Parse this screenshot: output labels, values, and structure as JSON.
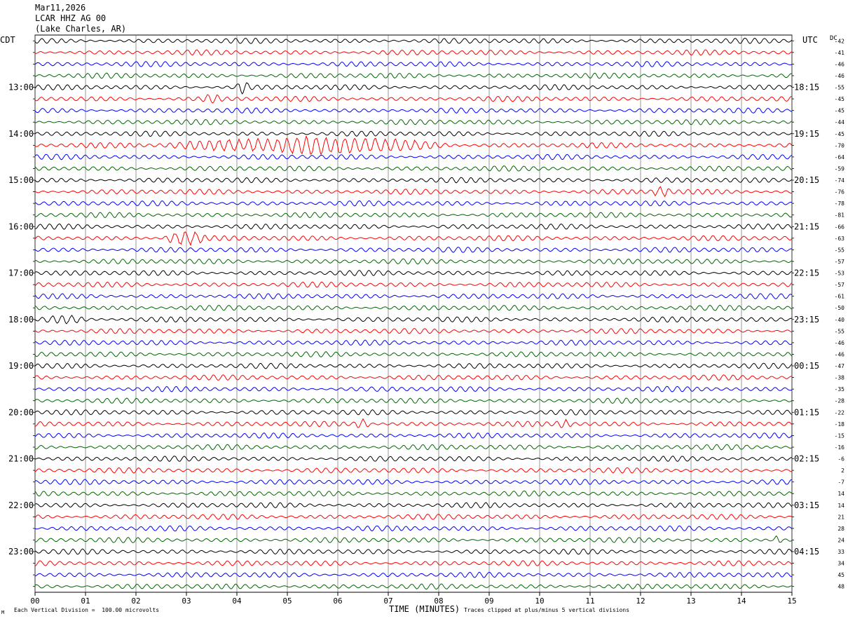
{
  "header": {
    "date": "Mar11,2026",
    "station": "LCAR HHZ AG 00",
    "location": "(Lake Charles, AR)"
  },
  "labels": {
    "left_tz": "CDT",
    "right_tz": "UTC",
    "dc": "DC",
    "mark": "M"
  },
  "footer": {
    "scale": "Each Vertical Division =  100.00 microvolts",
    "clip": "Traces clipped at plus/minus 5 vertical divisions"
  },
  "colors": {
    "trace_cycle": [
      "#000000",
      "#ff0000",
      "#0000ff",
      "#006600"
    ],
    "grid": "#000000"
  },
  "chart_data": {
    "type": "line",
    "title": "",
    "xlabel": "TIME (MINUTES)",
    "ylabel": "",
    "x_ticks": [
      "00",
      "01",
      "02",
      "03",
      "04",
      "05",
      "06",
      "07",
      "08",
      "09",
      "10",
      "11",
      "12",
      "13",
      "14",
      "15"
    ],
    "xlim": [
      0,
      15
    ],
    "rows_per_hour": 4,
    "minutes_per_row": 15,
    "left_hour_labels": [
      "13:00",
      "14:00",
      "15:00",
      "16:00",
      "17:00",
      "18:00",
      "19:00",
      "20:00",
      "21:00",
      "22:00",
      "23:00"
    ],
    "right_hour_labels": [
      "18:15",
      "19:15",
      "20:15",
      "21:15",
      "22:15",
      "23:15",
      "00:15",
      "01:15",
      "02:15",
      "03:15",
      "04:15"
    ],
    "first_hour_row_index": 4,
    "dc_offsets": [
      -42,
      -41,
      -46,
      -46,
      -55,
      -45,
      -45,
      -44,
      -45,
      -70,
      -64,
      -59,
      -74,
      -76,
      -78,
      -81,
      -66,
      -63,
      -55,
      -57,
      -53,
      -57,
      -61,
      -50,
      -40,
      -55,
      -46,
      -46,
      -47,
      -38,
      -35,
      -28,
      -22,
      -18,
      -15,
      -16,
      -6,
      2,
      -7,
      14,
      14,
      21,
      28,
      24,
      33,
      34,
      45,
      48
    ],
    "events": [
      {
        "row": 4,
        "start_min": 3.95,
        "end_min": 4.45,
        "amp": 2.2
      },
      {
        "row": 5,
        "start_min": 3.3,
        "end_min": 3.9,
        "amp": 1.4
      },
      {
        "row": 9,
        "start_min": 2.3,
        "end_min": 11.0,
        "amp": 3.0
      },
      {
        "row": 13,
        "start_min": 12.2,
        "end_min": 12.8,
        "amp": 1.6
      },
      {
        "row": 17,
        "start_min": 2.5,
        "end_min": 3.8,
        "amp": 2.6
      },
      {
        "row": 24,
        "start_min": 0.0,
        "end_min": 1.5,
        "amp": 1.3
      },
      {
        "row": 33,
        "start_min": 6.3,
        "end_min": 6.8,
        "amp": 1.8
      },
      {
        "row": 33,
        "start_min": 10.3,
        "end_min": 10.8,
        "amp": 1.4
      },
      {
        "row": 43,
        "start_min": 14.6,
        "end_min": 14.9,
        "amp": 1.6
      }
    ]
  }
}
